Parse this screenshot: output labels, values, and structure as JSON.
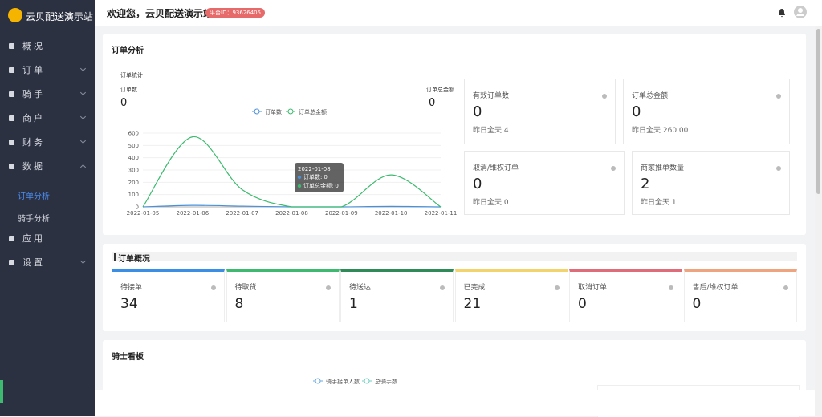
{
  "header": {
    "site_name": "云贝配送演示站",
    "welcome": "欢迎您，云贝配送演示站",
    "platform_id": "平台ID：93626405"
  },
  "sidebar": {
    "menu": [
      "概况",
      "订单",
      "骑手",
      "商户",
      "财务",
      "数据"
    ],
    "submenu": [
      "订单分析",
      "骑手分析"
    ],
    "menu_bottom": [
      "应用",
      "设置"
    ]
  },
  "order_analysis": {
    "title": "订单分析",
    "stats": [
      {
        "label": "有效订单数",
        "value": 0,
        "yesterday": "昨日全天 4"
      },
      {
        "label": "订单总金额",
        "value": 0,
        "yesterday": "昨日全天 260.00"
      },
      {
        "label": "取消/维权订单",
        "value": 0,
        "yesterday": "昨日全天 0"
      },
      {
        "label": "商家推单数量",
        "value": 2,
        "yesterday": "昨日全天 1"
      }
    ]
  },
  "chart_data": {
    "type": "line",
    "title": "订单统计",
    "summary": [
      {
        "label": "订单数",
        "value": 0
      },
      {
        "label": "订单总金额",
        "value": 0
      }
    ],
    "categories": [
      "2022-01-05",
      "2022-01-06",
      "2022-01-07",
      "2022-01-08",
      "2022-01-09",
      "2022-01-10",
      "2022-01-11"
    ],
    "series": [
      {
        "name": "订单数",
        "color": "#4a90d9",
        "values": [
          0,
          12,
          6,
          0,
          0,
          4,
          0
        ]
      },
      {
        "name": "订单总金额",
        "color": "#3dba6f",
        "values": [
          0,
          570,
          140,
          0,
          0,
          260,
          0
        ]
      }
    ],
    "ylim": [
      0,
      600
    ],
    "yticks": [
      0,
      100,
      200,
      300,
      400,
      500,
      600
    ],
    "grid": true,
    "tooltip": {
      "title": "2022-01-08",
      "rows": [
        {
          "label": "订单数:",
          "value": 0
        },
        {
          "label": "订单总金额:",
          "value": 0
        }
      ]
    }
  },
  "order_overview": {
    "title": "订单概况",
    "items": [
      {
        "label": "待接单",
        "value": 34,
        "color": "#3a8ee6"
      },
      {
        "label": "待取货",
        "value": 8,
        "color": "#3dba6f"
      },
      {
        "label": "待送达",
        "value": 1,
        "color": "#2e8b57"
      },
      {
        "label": "已完成",
        "value": 21,
        "color": "#f3d36b"
      },
      {
        "label": "取消订单",
        "value": 0,
        "color": "#e06c7a"
      },
      {
        "label": "售后/维权订单",
        "value": 0,
        "color": "#f0a37f"
      }
    ]
  },
  "rider_board": {
    "title": "骑士看板",
    "legend": [
      "骑手接单人数",
      "总骑手数"
    ]
  }
}
